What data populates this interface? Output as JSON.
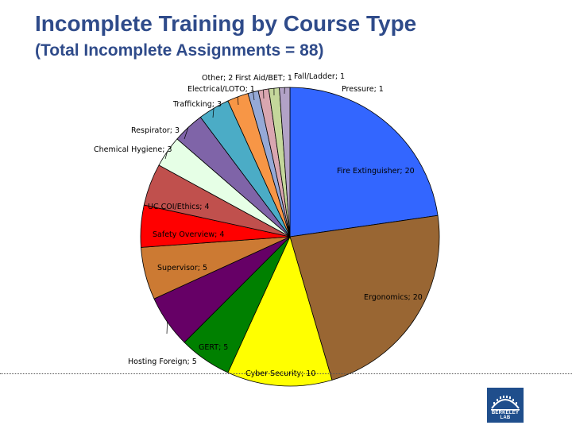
{
  "title": "Incomplete Training by Course Type",
  "subtitle": "(Total Incomplete Assignments = 88)",
  "logo": {
    "text": "BERKELEY LAB"
  },
  "chart_data": {
    "type": "pie",
    "title": "Incomplete Training by Course Type",
    "subtitle": "(Total Incomplete Assignments = 88)",
    "total": 88,
    "slices": [
      {
        "name": "Fire Extinguisher",
        "value": 20,
        "label": "Fire Extinguisher; 20",
        "color": "#3366FF"
      },
      {
        "name": "Ergonomics",
        "value": 20,
        "label": "Ergonomics; 20",
        "color": "#996633"
      },
      {
        "name": "Cyber Security",
        "value": 10,
        "label": "Cyber Security; 10",
        "color": "#FFFF00"
      },
      {
        "name": "GERT",
        "value": 5,
        "label": "GERT; 5",
        "color": "#008000"
      },
      {
        "name": "Hosting Foreign",
        "value": 5,
        "label": "Hosting Foreign; 5",
        "color": "#660066"
      },
      {
        "name": "Supervisor",
        "value": 5,
        "label": "Supervisor; 5",
        "color": "#CC7A33"
      },
      {
        "name": "Safety Overview",
        "value": 4,
        "label": "Safety Overview; 4",
        "color": "#FF0000"
      },
      {
        "name": "UC COI/Ethics",
        "value": 4,
        "label": "UC COI/Ethics; 4",
        "color": "#C0504D"
      },
      {
        "name": "Chemical Hygiene",
        "value": 3,
        "label": "Chemical Hygiene; 3",
        "color": "#E6FFE6"
      },
      {
        "name": "Respirator",
        "value": 3,
        "label": "Respirator; 3",
        "color": "#7F64A8"
      },
      {
        "name": "Trafficking",
        "value": 3,
        "label": "Trafficking; 3",
        "color": "#4BACC6"
      },
      {
        "name": "Other",
        "value": 2,
        "label": "Other; 2",
        "color": "#F79646"
      },
      {
        "name": "Electrical/LOTO",
        "value": 1,
        "label": "Electrical/LOTO; 1",
        "color": "#95A9D6"
      },
      {
        "name": "First Aid/BET",
        "value": 1,
        "label": "First Aid/BET; 1",
        "color": "#D9A6B0"
      },
      {
        "name": "Fall/Ladder",
        "value": 1,
        "label": "Fall/Ladder; 1",
        "color": "#C4D79B"
      },
      {
        "name": "Pressure",
        "value": 1,
        "label": "Pressure; 1",
        "color": "#B2A2C7"
      }
    ]
  }
}
